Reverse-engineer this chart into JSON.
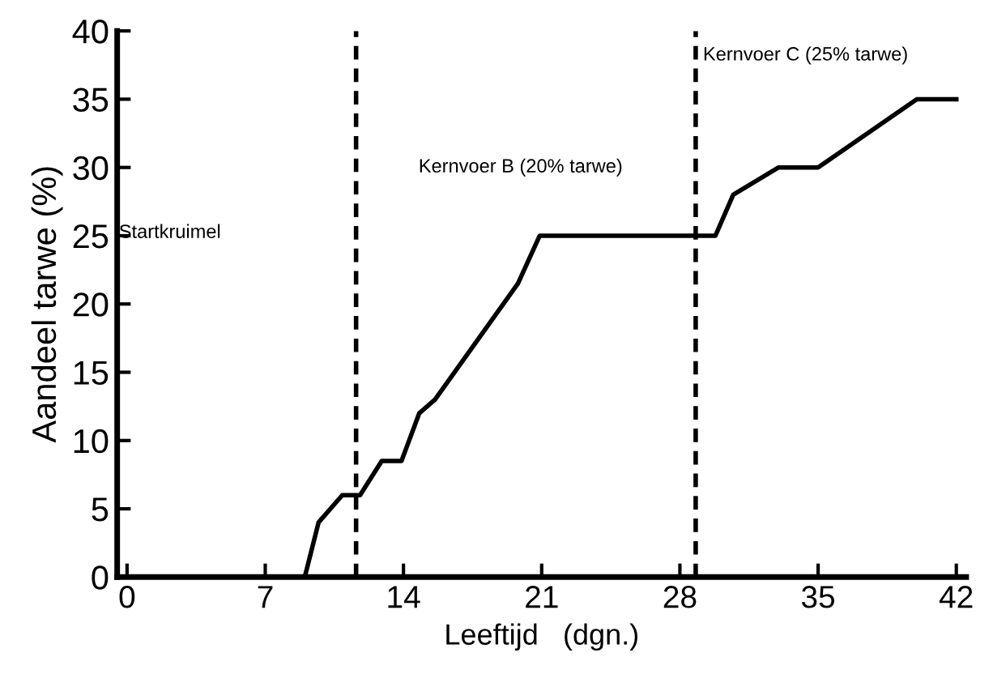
{
  "chart_data": {
    "type": "line",
    "xlabel": "Leeftijd   (dgn.)",
    "ylabel": "Aandeel tarwe (%)",
    "series": [
      {
        "color": "#000000",
        "x": [
          0,
          9,
          9.7,
          10.9,
          11.8,
          12.9,
          13.9,
          14.8,
          15.6,
          19.8,
          20.9,
          29.8,
          30.7,
          33,
          35,
          40,
          42
        ],
        "values": [
          0,
          0,
          4,
          6,
          6,
          8.5,
          8.5,
          12,
          13,
          21.5,
          25,
          25,
          28,
          30,
          30,
          35,
          35
        ]
      }
    ],
    "xlim": [
      -0.5,
      42.5
    ],
    "xticks": [
      0,
      7,
      14,
      21,
      28,
      35,
      42
    ],
    "ylim": [
      0,
      40
    ],
    "yticks": [
      0,
      5,
      10,
      15,
      20,
      25,
      30,
      35,
      40
    ],
    "ref_lines": [
      {
        "axis": "x",
        "value": 11.6,
        "color": "#000000",
        "line_style": "dashed"
      },
      {
        "axis": "x",
        "value": 28.8,
        "color": "#000000",
        "line_style": "dashed"
      }
    ],
    "annotations": [
      "Startkruimel",
      "Kernvoer B (20% tarwe)",
      "Kernvoer C (25% tarwe)"
    ],
    "grid": false,
    "marker": "none",
    "line_style": "solid"
  }
}
